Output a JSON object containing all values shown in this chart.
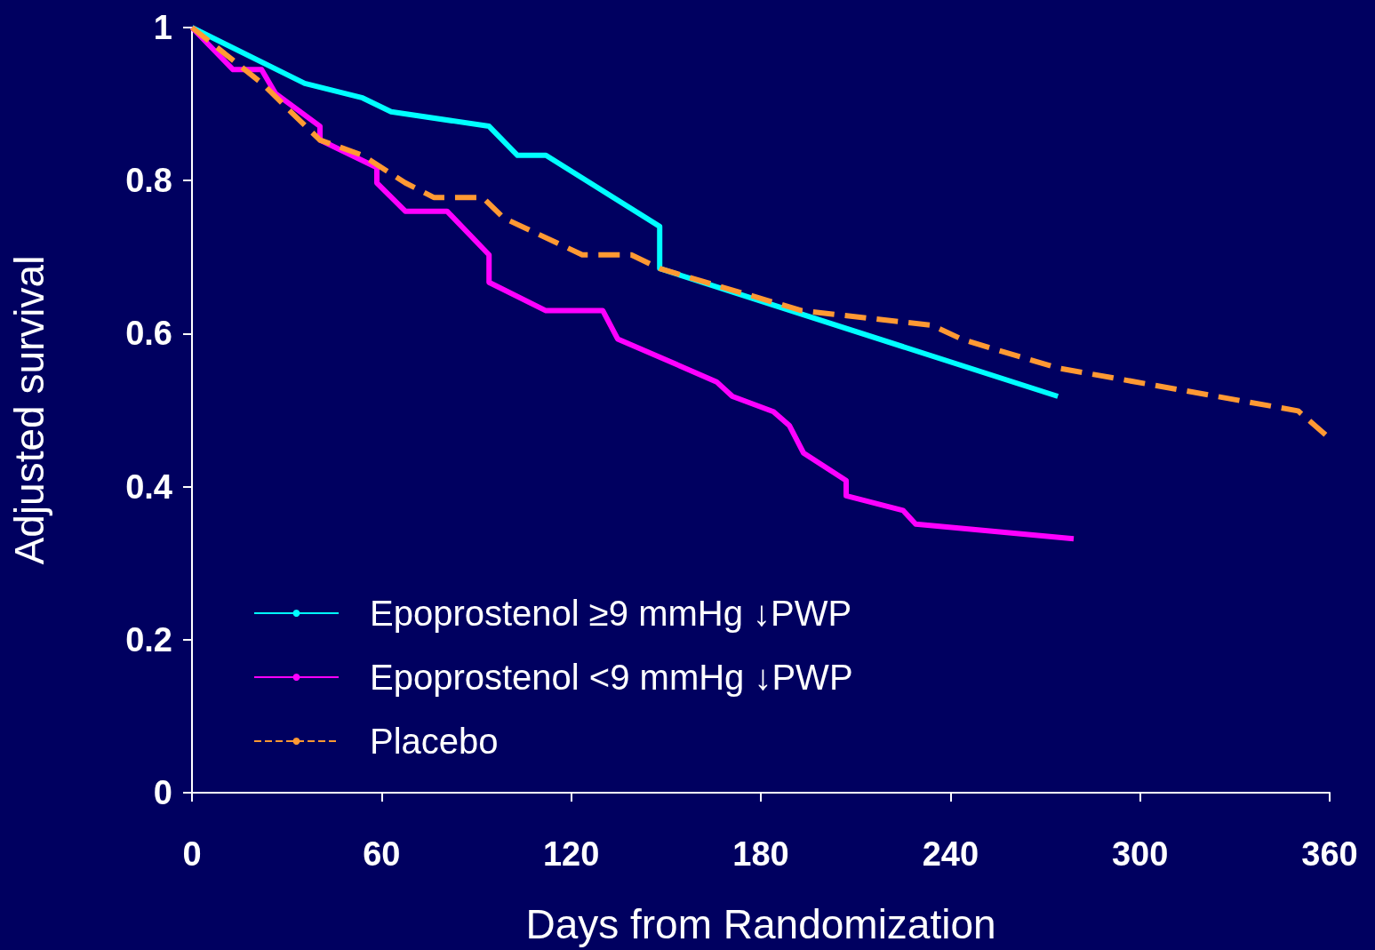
{
  "chart_data": {
    "type": "line",
    "xlabel": "Days from Randomization",
    "ylabel": "Adjusted survival",
    "xlim": [
      0,
      360
    ],
    "xticks": [
      0,
      60,
      120,
      180,
      240,
      300,
      360
    ],
    "ylim": [
      0,
      1
    ],
    "yticks": [
      0,
      0.2,
      0.4,
      0.6,
      0.8,
      1
    ],
    "grid": false,
    "legend": "bottom left",
    "marker": "none",
    "series": [
      {
        "name": "Epoprostenol ≥9 mmHg ↓PWP",
        "color": "#00ffff",
        "line_style": "solid",
        "x": [
          0,
          35.7,
          54,
          63,
          94,
          103,
          112,
          148,
          148,
          274
        ],
        "values": [
          1,
          0.927,
          0.908,
          0.89,
          0.871,
          0.833,
          0.833,
          0.74,
          0.685,
          0.518
        ]
      },
      {
        "name": "Epoprostenol <9 mmHg ↓PWP",
        "color": "#ff00ff",
        "line_style": "solid",
        "x": [
          0,
          13,
          22,
          26.4,
          40.5,
          40.5,
          58.5,
          58.5,
          67.5,
          80.7,
          94,
          94,
          112,
          130,
          134.7,
          166,
          171,
          184,
          189,
          193.5,
          207,
          207,
          225,
          229,
          279
        ],
        "values": [
          1,
          0.945,
          0.945,
          0.914,
          0.871,
          0.853,
          0.817,
          0.797,
          0.76,
          0.76,
          0.703,
          0.667,
          0.63,
          0.63,
          0.593,
          0.537,
          0.518,
          0.498,
          0.48,
          0.444,
          0.408,
          0.388,
          0.369,
          0.351,
          0.332
        ]
      },
      {
        "name": "Placebo",
        "color": "#ff9933",
        "line_style": "dashed",
        "x": [
          0,
          22.5,
          31.5,
          40.5,
          54,
          67.5,
          76.5,
          92,
          98.7,
          123.5,
          139,
          148,
          193,
          234,
          244,
          274,
          350,
          360
        ],
        "values": [
          1,
          0.926,
          0.889,
          0.853,
          0.833,
          0.797,
          0.778,
          0.778,
          0.751,
          0.703,
          0.703,
          0.685,
          0.63,
          0.611,
          0.592,
          0.555,
          0.499,
          0.463
        ]
      }
    ]
  }
}
